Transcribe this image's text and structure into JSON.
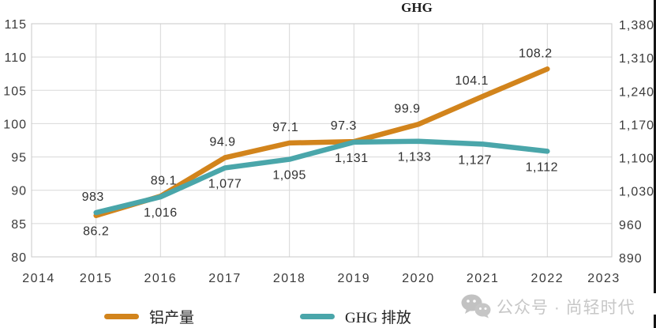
{
  "title": "GHG",
  "watermark": {
    "icon": "wechat-icon",
    "text": "公众号 · 尚轻时代"
  },
  "colors": {
    "aluminum": "#D2841C",
    "ghg": "#4AA6AA",
    "grid": "#D8D8D8",
    "border": "#C8C8C8",
    "axis_text": "#3A3A3A",
    "label_text": "#303030",
    "watermark": "#C7C7C7"
  },
  "chart_data": {
    "type": "line",
    "title": "GHG",
    "x": [
      2015,
      2016,
      2017,
      2018,
      2019,
      2020,
      2021,
      2022
    ],
    "x_axis": {
      "tick_labels": [
        "2014",
        "2015",
        "2016",
        "2017",
        "2018",
        "2019",
        "2020",
        "2021",
        "2022",
        "2023"
      ],
      "range": [
        2014,
        2023
      ]
    },
    "left_axis": {
      "range": [
        80,
        115
      ],
      "step": 5,
      "tick_labels": [
        "115",
        "110",
        "105",
        "100",
        "95",
        "90",
        "85",
        "80"
      ]
    },
    "right_axis": {
      "title": "GHG",
      "range": [
        890,
        1380
      ],
      "step": 70,
      "tick_labels": [
        "1,380",
        "1,310",
        "1,240",
        "1,170",
        "1,100",
        "1,030",
        "960",
        "890"
      ]
    },
    "grid": true,
    "legend_position": "bottom",
    "series": [
      {
        "name": "铝产量",
        "axis": "left",
        "color": "#D2841C",
        "values": [
          86.2,
          89.1,
          94.9,
          97.1,
          97.3,
          99.9,
          104.1,
          108.2
        ],
        "point_labels": [
          "86.2",
          "89.1",
          "94.9",
          "97.1",
          "97.3",
          "99.9",
          "104.1",
          "108.2"
        ],
        "label_placement": [
          "below",
          "above",
          "above",
          "above",
          "above",
          "above",
          "above",
          "above"
        ]
      },
      {
        "name": "GHG 排放",
        "axis": "right",
        "color": "#4AA6AA",
        "values": [
          983,
          1016,
          1077,
          1095,
          1131,
          1133,
          1127,
          1112
        ],
        "point_labels": [
          "983",
          "1,016",
          "1,077",
          "1,095",
          "1,131",
          "1,133",
          "1,127",
          "1,112"
        ],
        "label_placement": [
          "above",
          "below",
          "below",
          "below",
          "below",
          "below",
          "below",
          "below"
        ]
      }
    ]
  }
}
